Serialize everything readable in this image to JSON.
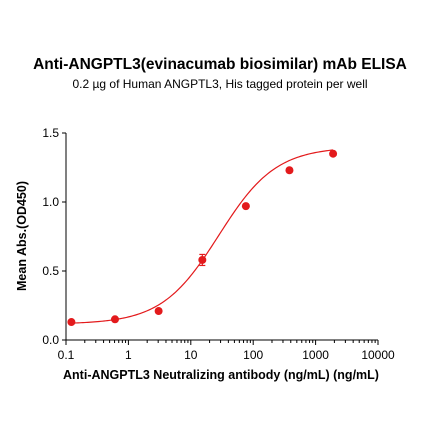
{
  "chart_data": {
    "type": "scatter",
    "title": "Anti-ANGPTL3(evinacumab biosimilar) mAb ELISA",
    "subtitle": "0.2 µg of Human ANGPTL3, His tagged protein per well",
    "xlabel": "Anti-ANGPTL3 Neutralizing antibody (ng/mL) (ng/mL)",
    "ylabel": "Mean Abs.(OD450)",
    "xscale": "log",
    "xlim": [
      0.1,
      10000
    ],
    "ylim": [
      0.0,
      1.5
    ],
    "xticks": [
      0.1,
      1,
      10,
      100,
      1000,
      10000
    ],
    "xtick_labels": [
      "0.1",
      "1",
      "10",
      "100",
      "1000",
      "10000"
    ],
    "yticks": [
      0.0,
      0.5,
      1.0,
      1.5
    ],
    "ytick_labels": [
      "0.0",
      "0.5",
      "1.0",
      "1.5"
    ],
    "grid": false,
    "color": "#e31a1c",
    "series": [
      {
        "x": [
          0.122,
          0.61,
          3.05,
          15.3,
          76.3,
          381,
          1907
        ],
        "y": [
          0.13,
          0.15,
          0.21,
          0.58,
          0.97,
          1.23,
          1.35
        ],
        "error": [
          0.0,
          0.0,
          0.015,
          0.04,
          0.0,
          0.0,
          0.0
        ]
      }
    ],
    "fit_curve": {
      "type": "4PL",
      "bottom": 0.115,
      "top": 1.4,
      "ec50": 28,
      "hill": 0.95
    }
  }
}
